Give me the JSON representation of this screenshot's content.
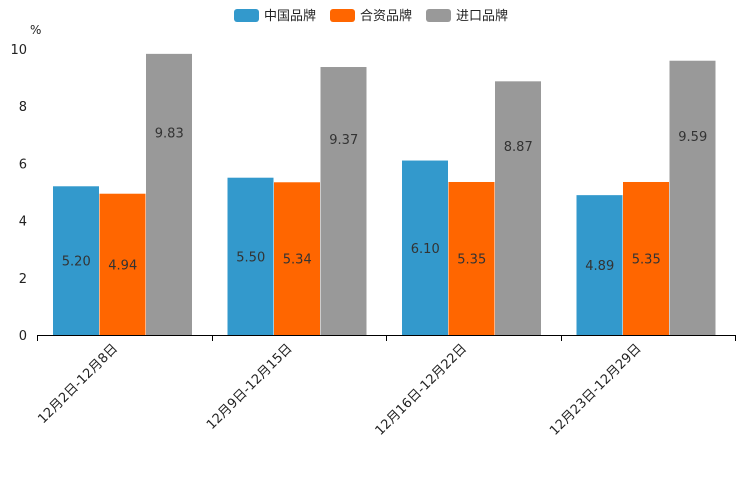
{
  "chart_data": {
    "type": "bar",
    "title": "",
    "unit": "%",
    "xlabel": "",
    "ylabel": "%",
    "ylim": [
      0,
      10
    ],
    "yticks": [
      0,
      2,
      4,
      6,
      8,
      10
    ],
    "grid": false,
    "legend_position": "top-center",
    "categories": [
      "12月2日-12月8日",
      "12月9日-12月15日",
      "12月16日-12月22日",
      "12月23日-12月29日"
    ],
    "series": [
      {
        "name": "中国品牌",
        "color": "#3399cc",
        "values": [
          5.2,
          5.5,
          6.1,
          4.89
        ],
        "labels": [
          "5.20",
          "5.50",
          "6.10",
          "4.89"
        ]
      },
      {
        "name": "合资品牌",
        "color": "#ff6600",
        "values": [
          4.94,
          5.34,
          5.35,
          5.35
        ],
        "labels": [
          "4.94",
          "5.34",
          "5.35",
          "5.35"
        ]
      },
      {
        "name": "进口品牌",
        "color": "#999999",
        "values": [
          9.83,
          9.37,
          8.87,
          9.59
        ],
        "labels": [
          "9.83",
          "9.37",
          "8.87",
          "9.59"
        ]
      }
    ]
  }
}
